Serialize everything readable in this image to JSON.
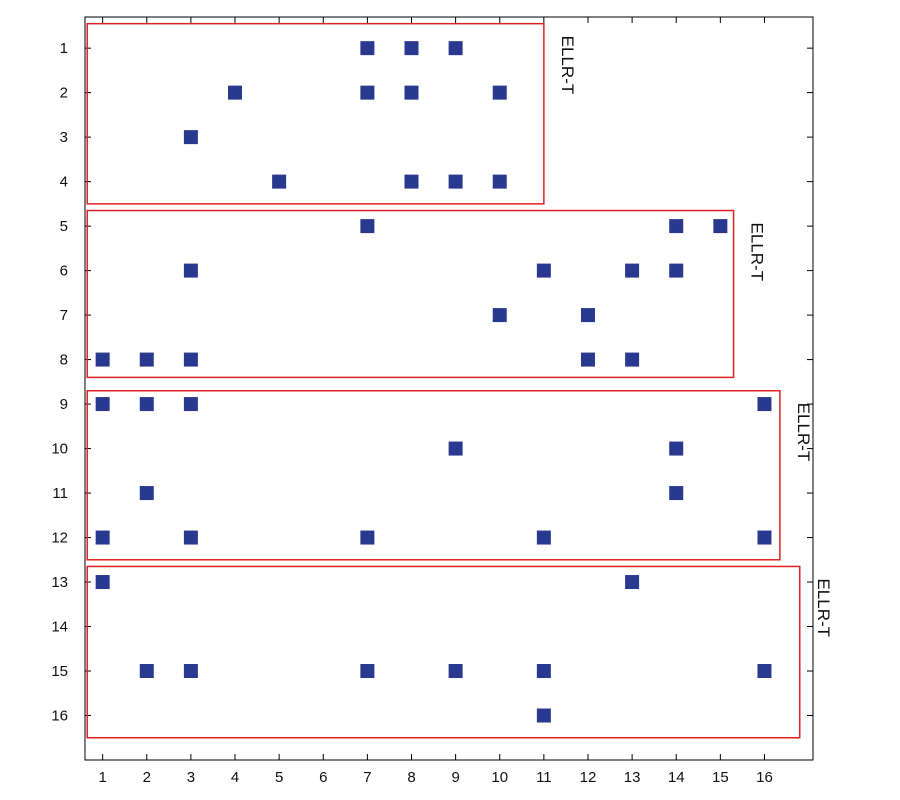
{
  "chart_data": {
    "type": "scatter",
    "title": "",
    "xlabel": "",
    "ylabel": "",
    "xlim": [
      0.6,
      17.1
    ],
    "ylim": [
      0.3,
      17.0
    ],
    "y_axis_inverted": true,
    "grid": false,
    "xticks": [
      1,
      2,
      3,
      4,
      5,
      6,
      7,
      8,
      9,
      10,
      11,
      12,
      13,
      14,
      15,
      16
    ],
    "yticks": [
      1,
      2,
      3,
      4,
      5,
      6,
      7,
      8,
      9,
      10,
      11,
      12,
      13,
      14,
      15,
      16
    ],
    "marker": "square",
    "colors": {
      "marker": "#2a3990",
      "group_box": "#dd2222",
      "axes": "#000000"
    },
    "points": [
      {
        "x": 7,
        "y": 1
      },
      {
        "x": 8,
        "y": 1
      },
      {
        "x": 9,
        "y": 1
      },
      {
        "x": 4,
        "y": 2
      },
      {
        "x": 7,
        "y": 2
      },
      {
        "x": 8,
        "y": 2
      },
      {
        "x": 10,
        "y": 2
      },
      {
        "x": 3,
        "y": 3
      },
      {
        "x": 5,
        "y": 4
      },
      {
        "x": 8,
        "y": 4
      },
      {
        "x": 9,
        "y": 4
      },
      {
        "x": 10,
        "y": 4
      },
      {
        "x": 7,
        "y": 5
      },
      {
        "x": 14,
        "y": 5
      },
      {
        "x": 15,
        "y": 5
      },
      {
        "x": 3,
        "y": 6
      },
      {
        "x": 11,
        "y": 6
      },
      {
        "x": 13,
        "y": 6
      },
      {
        "x": 14,
        "y": 6
      },
      {
        "x": 10,
        "y": 7
      },
      {
        "x": 12,
        "y": 7
      },
      {
        "x": 1,
        "y": 8
      },
      {
        "x": 2,
        "y": 8
      },
      {
        "x": 3,
        "y": 8
      },
      {
        "x": 12,
        "y": 8
      },
      {
        "x": 13,
        "y": 8
      },
      {
        "x": 1,
        "y": 9
      },
      {
        "x": 2,
        "y": 9
      },
      {
        "x": 3,
        "y": 9
      },
      {
        "x": 16,
        "y": 9
      },
      {
        "x": 9,
        "y": 10
      },
      {
        "x": 14,
        "y": 10
      },
      {
        "x": 2,
        "y": 11
      },
      {
        "x": 14,
        "y": 11
      },
      {
        "x": 1,
        "y": 12
      },
      {
        "x": 3,
        "y": 12
      },
      {
        "x": 7,
        "y": 12
      },
      {
        "x": 11,
        "y": 12
      },
      {
        "x": 16,
        "y": 12
      },
      {
        "x": 1,
        "y": 13
      },
      {
        "x": 13,
        "y": 13
      },
      {
        "x": 2,
        "y": 15
      },
      {
        "x": 3,
        "y": 15
      },
      {
        "x": 7,
        "y": 15
      },
      {
        "x": 9,
        "y": 15
      },
      {
        "x": 11,
        "y": 15
      },
      {
        "x": 16,
        "y": 15
      },
      {
        "x": 11,
        "y": 16
      }
    ],
    "groups": [
      {
        "label": "ELLR-T",
        "x_range": [
          0.65,
          11.0
        ],
        "y_range": [
          0.45,
          4.5
        ]
      },
      {
        "label": "ELLR-T",
        "x_range": [
          0.65,
          15.3
        ],
        "y_range": [
          4.65,
          8.4
        ]
      },
      {
        "label": "ELLR-T",
        "x_range": [
          0.65,
          16.35
        ],
        "y_range": [
          8.7,
          12.5
        ]
      },
      {
        "label": "ELLR-T",
        "x_range": [
          0.65,
          16.8
        ],
        "y_range": [
          12.65,
          16.5
        ]
      }
    ]
  }
}
